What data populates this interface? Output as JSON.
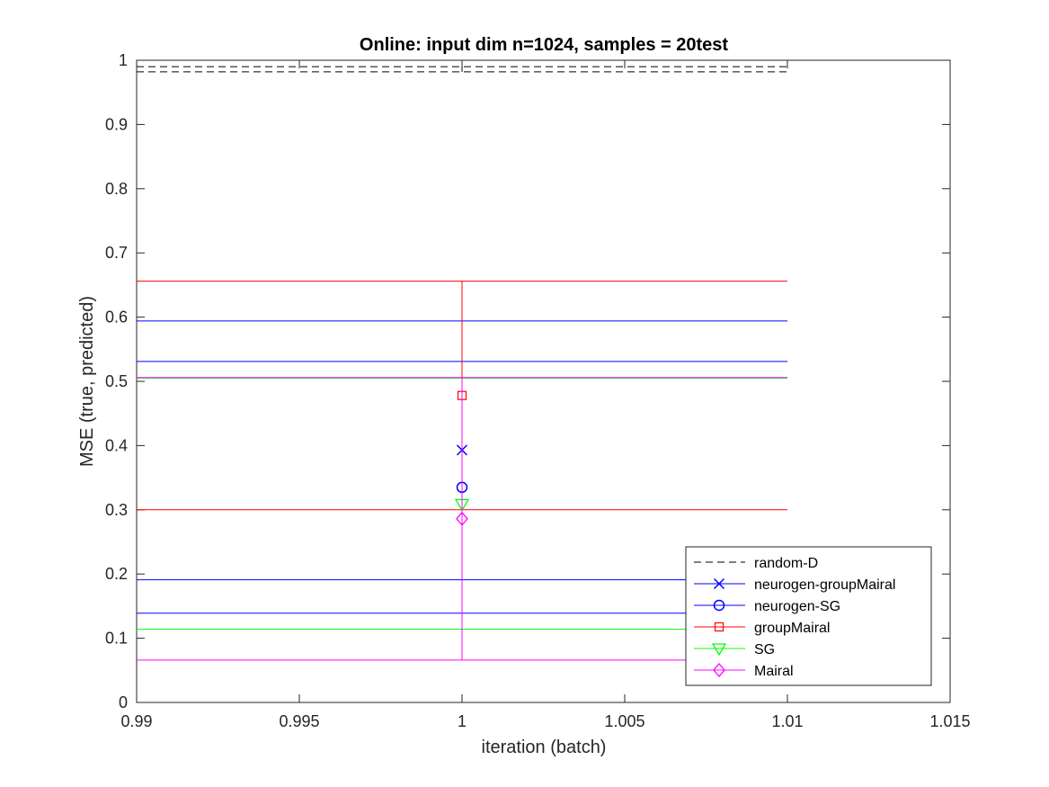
{
  "chart_data": {
    "type": "scatter",
    "title": "Online:  input dim n=1024, samples = 20test",
    "xlabel": "iteration (batch)",
    "ylabel": "MSE (true, predicted)",
    "xlim": [
      0.99,
      1.015
    ],
    "ylim": [
      0,
      1
    ],
    "xticks": [
      0.99,
      0.995,
      1,
      1.005,
      1.01,
      1.015
    ],
    "xtick_labels": [
      "0.99",
      "0.995",
      "1",
      "1.005",
      "1.01",
      "1.015"
    ],
    "yticks": [
      0,
      0.1,
      0.2,
      0.3,
      0.4,
      0.5,
      0.6,
      0.7,
      0.8,
      0.9,
      1
    ],
    "ytick_labels": [
      "0",
      "0.1",
      "0.2",
      "0.3",
      "0.4",
      "0.5",
      "0.6",
      "0.7",
      "0.8",
      "0.9",
      "1"
    ],
    "grid": false,
    "legend_position": "bottom-right",
    "series": [
      {
        "name": "random-D",
        "color": "#000000",
        "marker": "none",
        "line_style": "dashed",
        "x": 1,
        "y": 0.986,
        "lower": 0.982,
        "upper": 0.99,
        "cap_span": [
          0.99,
          1.01
        ]
      },
      {
        "name": "neurogen-groupMairal",
        "color": "#0000ff",
        "marker": "x",
        "line_style": "solid",
        "x": 1,
        "y": 0.393,
        "lower": 0.191,
        "upper": 0.594,
        "cap_span": [
          0.99,
          1.01
        ]
      },
      {
        "name": "neurogen-SG",
        "color": "#0000ff",
        "marker": "circle",
        "line_style": "solid",
        "x": 1,
        "y": 0.335,
        "lower": 0.139,
        "upper": 0.531,
        "cap_span": [
          0.99,
          1.01
        ]
      },
      {
        "name": "groupMairal",
        "color": "#ff0000",
        "marker": "square",
        "line_style": "solid",
        "x": 1,
        "y": 0.478,
        "lower": 0.3,
        "upper": 0.656,
        "cap_span": [
          0.99,
          1.01
        ]
      },
      {
        "name": "SG",
        "color": "#00ff00",
        "marker": "triangle-down",
        "line_style": "solid",
        "x": 1,
        "y": 0.309,
        "lower": 0.114,
        "upper": 0.505,
        "cap_span": [
          0.99,
          1.01
        ]
      },
      {
        "name": "Mairal",
        "color": "#ff00ff",
        "marker": "diamond",
        "line_style": "solid",
        "x": 1,
        "y": 0.286,
        "lower": 0.066,
        "upper": 0.506,
        "cap_span": [
          0.99,
          1.01
        ]
      }
    ]
  }
}
